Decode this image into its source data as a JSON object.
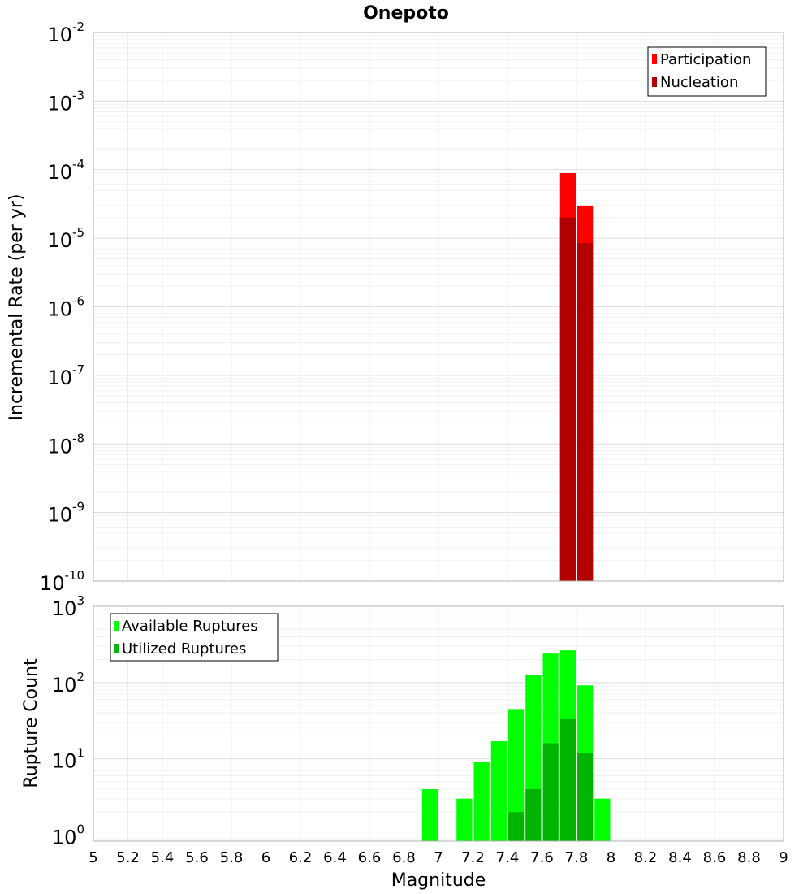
{
  "chart_data": [
    {
      "type": "bar",
      "title": "Onepoto",
      "xlabel": "",
      "ylabel": "Incremental Rate (per yr)",
      "xlim": [
        5,
        9
      ],
      "ylim_log10": [
        -10,
        -2
      ],
      "y_scale": "log",
      "y_ticks": [
        {
          "exp": -2,
          "mant": "10",
          "sup": "-2"
        },
        {
          "exp": -3,
          "mant": "10",
          "sup": "-3"
        },
        {
          "exp": -4,
          "mant": "10",
          "sup": "-4"
        },
        {
          "exp": -5,
          "mant": "10",
          "sup": "-5"
        },
        {
          "exp": -6,
          "mant": "10",
          "sup": "-6"
        },
        {
          "exp": -7,
          "mant": "10",
          "sup": "-7"
        },
        {
          "exp": -8,
          "mant": "10",
          "sup": "-8"
        },
        {
          "exp": -9,
          "mant": "10",
          "sup": "-9"
        },
        {
          "exp": -10,
          "mant": "10",
          "sup": "-10"
        }
      ],
      "legend": {
        "position": "top-right",
        "entries": [
          {
            "label": "Participation",
            "color": "#ff0000"
          },
          {
            "label": "Nucleation",
            "color": "#b30000"
          }
        ]
      },
      "bin_width": 0.1,
      "series": [
        {
          "name": "Participation",
          "color": "#ff0000",
          "points": [
            {
              "x": 7.75,
              "y": 8.9e-05
            },
            {
              "x": 7.85,
              "y": 3e-05
            }
          ]
        },
        {
          "name": "Nucleation",
          "color": "#b30000",
          "points": [
            {
              "x": 7.75,
              "y": 2e-05
            },
            {
              "x": 7.85,
              "y": 8.5e-06
            }
          ]
        }
      ]
    },
    {
      "type": "bar",
      "title": "",
      "xlabel": "Magnitude",
      "ylabel": "Rupture Count",
      "xlim": [
        5,
        9
      ],
      "ylim_log10": [
        -0.08,
        3
      ],
      "y_scale": "log",
      "y_ticks": [
        {
          "exp": 3,
          "mant": "10",
          "sup": "3"
        },
        {
          "exp": 2,
          "mant": "10",
          "sup": "2"
        },
        {
          "exp": 1,
          "mant": "10",
          "sup": "1"
        },
        {
          "exp": 0,
          "mant": "10",
          "sup": "0"
        }
      ],
      "x_ticks": [
        "5",
        "5.2",
        "5.4",
        "5.6",
        "5.8",
        "6",
        "6.2",
        "6.4",
        "6.6",
        "6.8",
        "7",
        "7.2",
        "7.4",
        "7.6",
        "7.8",
        "8",
        "8.2",
        "8.4",
        "8.6",
        "8.8",
        "9"
      ],
      "legend": {
        "position": "top-left",
        "entries": [
          {
            "label": "Available Ruptures",
            "color": "#00ff00"
          },
          {
            "label": "Utilized Ruptures",
            "color": "#00b400"
          }
        ]
      },
      "bin_width": 0.1,
      "series": [
        {
          "name": "Available Ruptures",
          "color": "#00ff00",
          "points": [
            {
              "x": 6.95,
              "y": 4
            },
            {
              "x": 7.15,
              "y": 3
            },
            {
              "x": 7.25,
              "y": 9
            },
            {
              "x": 7.35,
              "y": 17
            },
            {
              "x": 7.45,
              "y": 45
            },
            {
              "x": 7.55,
              "y": 125
            },
            {
              "x": 7.65,
              "y": 240
            },
            {
              "x": 7.75,
              "y": 265
            },
            {
              "x": 7.85,
              "y": 92
            },
            {
              "x": 7.95,
              "y": 3
            }
          ]
        },
        {
          "name": "Utilized Ruptures",
          "color": "#00b400",
          "points": [
            {
              "x": 7.45,
              "y": 2
            },
            {
              "x": 7.55,
              "y": 4
            },
            {
              "x": 7.65,
              "y": 16
            },
            {
              "x": 7.75,
              "y": 33
            },
            {
              "x": 7.85,
              "y": 12
            }
          ]
        }
      ]
    }
  ]
}
